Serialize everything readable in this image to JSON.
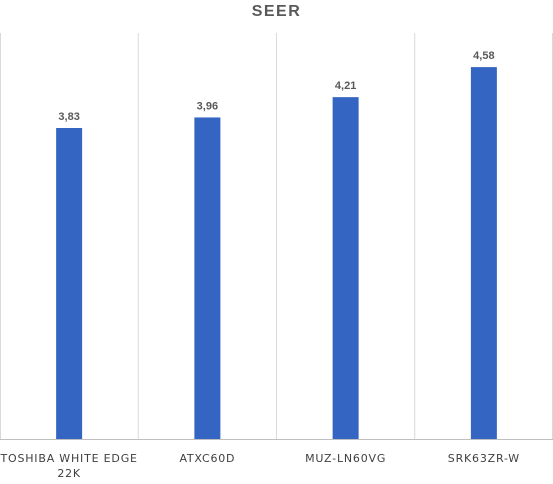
{
  "chart_data": {
    "type": "bar",
    "title": "SEER",
    "categories": [
      [
        "TOSHIBA WHITE EDGE",
        "22K"
      ],
      [
        "ATXC60D"
      ],
      [
        "MUZ-LN60VG"
      ],
      [
        "SRK63ZR-W"
      ]
    ],
    "values": [
      3.83,
      3.96,
      4.21,
      4.58
    ],
    "value_labels": [
      "3,83",
      "3,96",
      "4,21",
      "4,58"
    ],
    "ylim": [
      0,
      5
    ],
    "xlabel": "",
    "ylabel": "",
    "legend": "none",
    "grid": "vertical category separators",
    "bar_color": "#3565c2",
    "grid_color": "#d9d9d9",
    "axis_color": "#bfbfbf"
  }
}
